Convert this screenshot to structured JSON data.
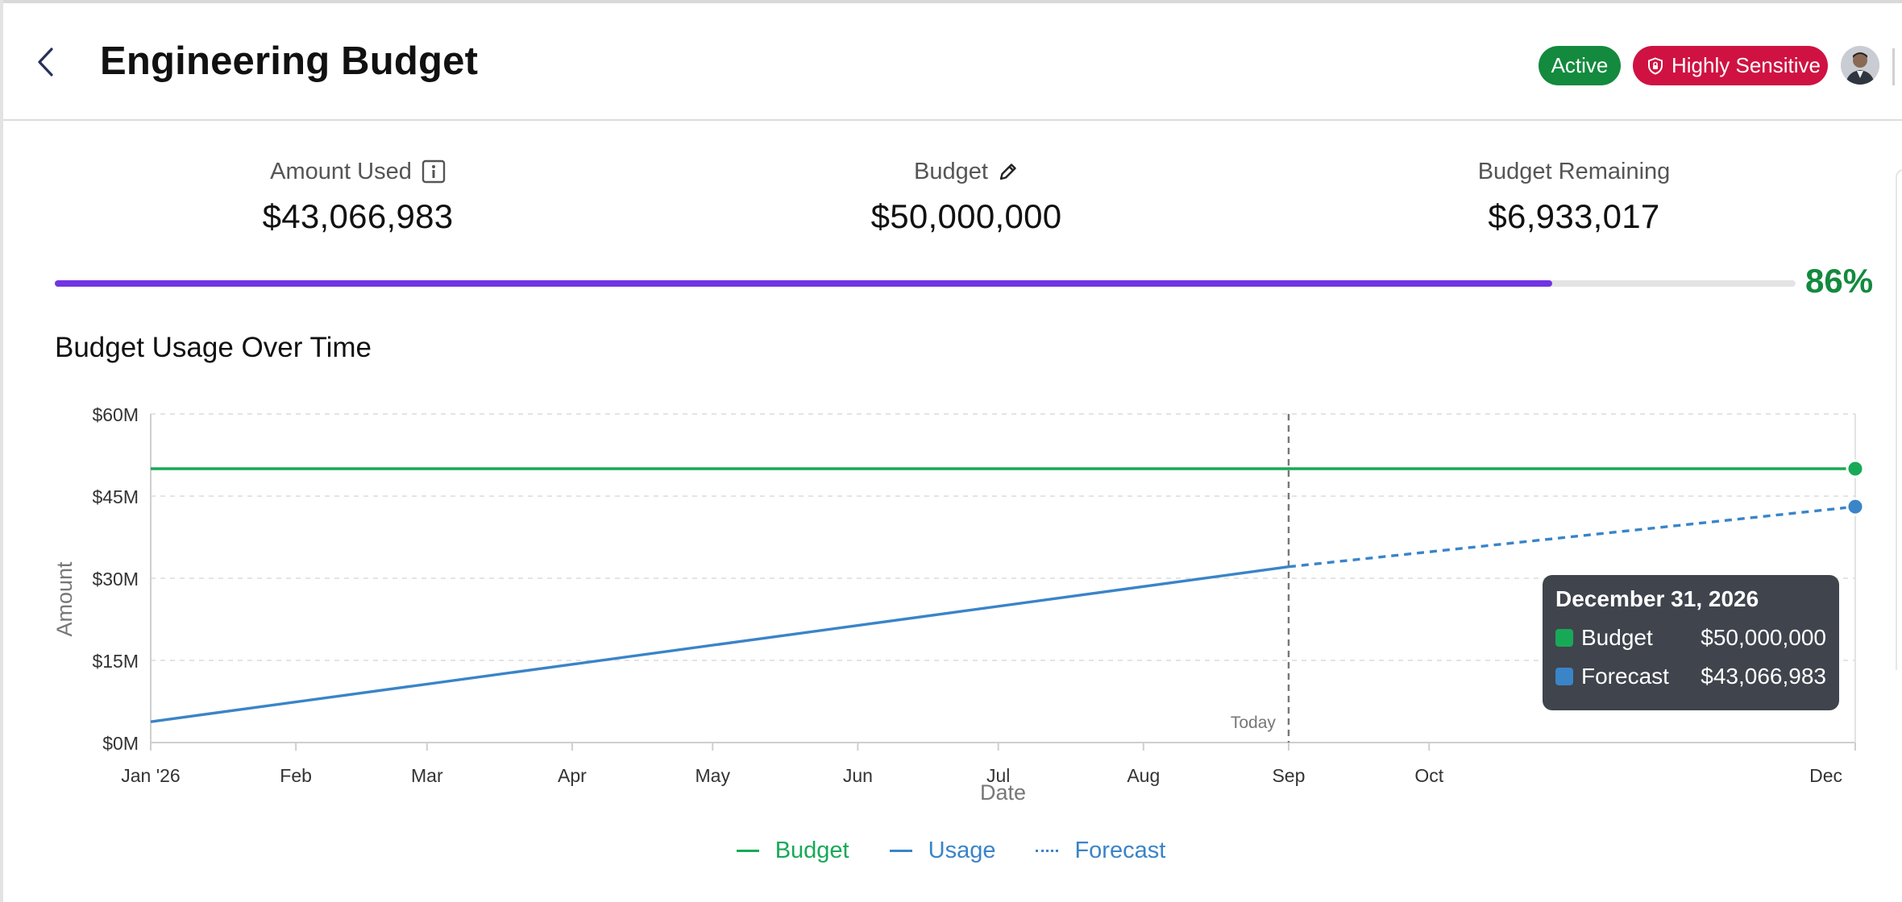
{
  "header": {
    "title": "Engineering Budget",
    "status_badge": "Active",
    "sensitivity_badge": "Highly Sensitive"
  },
  "kpis": {
    "amount_used_label": "Amount Used",
    "amount_used_value": "$43,066,983",
    "budget_label": "Budget",
    "budget_value": "$50,000,000",
    "remaining_label": "Budget Remaining",
    "remaining_value": "$6,933,017"
  },
  "progress": {
    "percent_label": "86%",
    "fraction": 0.86
  },
  "section_title": "Budget Usage Over Time",
  "colors": {
    "budget": "#18a957",
    "usage": "#3a84c8",
    "progress": "#7234e2",
    "active": "#138a3e",
    "sensitive": "#cf1242"
  },
  "chart_data": {
    "type": "line",
    "xlabel": "Date",
    "ylabel": "Amount",
    "x_ticks": [
      "Jan '26",
      "Feb",
      "Mar",
      "Apr",
      "May",
      "Jun",
      "Jul",
      "Aug",
      "Sep",
      "Oct",
      "Dec"
    ],
    "y_ticks": [
      "$0M",
      "$15M",
      "$30M",
      "$45M",
      "$60M"
    ],
    "ylim": [
      0,
      60000000
    ],
    "xlim": [
      "2026-01-01",
      "2026-12-31"
    ],
    "grid": true,
    "today_label": "Today",
    "today_date": "2026-09-01",
    "series": [
      {
        "name": "Budget",
        "style": "solid",
        "color": "#18a957",
        "points": [
          [
            "2026-01-01",
            50000000
          ],
          [
            "2026-12-31",
            50000000
          ]
        ]
      },
      {
        "name": "Usage",
        "style": "solid",
        "color": "#3a84c8",
        "points": [
          [
            "2026-01-01",
            3800000
          ],
          [
            "2026-09-01",
            32100000
          ]
        ]
      },
      {
        "name": "Forecast",
        "style": "dashed",
        "color": "#3a84c8",
        "points": [
          [
            "2026-09-01",
            32100000
          ],
          [
            "2026-12-31",
            43066983
          ]
        ]
      }
    ],
    "tooltip": {
      "title": "December 31, 2026",
      "rows": [
        {
          "name": "Budget",
          "value": "$50,000,000",
          "color": "#18a957"
        },
        {
          "name": "Forecast",
          "value": "$43,066,983",
          "color": "#3a84c8"
        }
      ]
    },
    "legend": [
      {
        "name": "Budget",
        "style": "solid",
        "color": "#18a957"
      },
      {
        "name": "Usage",
        "style": "solid",
        "color": "#3a84c8"
      },
      {
        "name": "Forecast",
        "style": "dashed",
        "color": "#3a84c8"
      }
    ]
  }
}
